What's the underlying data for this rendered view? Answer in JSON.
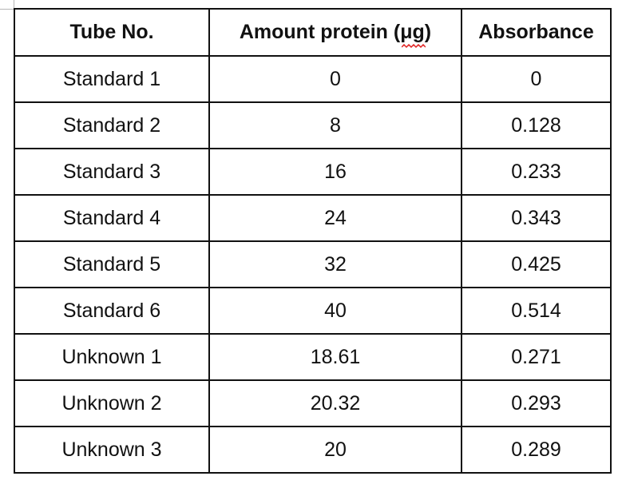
{
  "table": {
    "headers": [
      "Tube No.",
      "Amount protein (",
      "μg",
      ")",
      "Absorbance"
    ],
    "rows": [
      {
        "tube": "Standard 1",
        "amount": "0",
        "absorbance": "0"
      },
      {
        "tube": "Standard 2",
        "amount": "8",
        "absorbance": "0.128"
      },
      {
        "tube": "Standard 3",
        "amount": "16",
        "absorbance": "0.233"
      },
      {
        "tube": "Standard 4",
        "amount": "24",
        "absorbance": "0.343"
      },
      {
        "tube": "Standard 5",
        "amount": "32",
        "absorbance": "0.425"
      },
      {
        "tube": "Standard 6",
        "amount": "40",
        "absorbance": "0.514"
      },
      {
        "tube": "Unknown 1",
        "amount": "18.61",
        "absorbance": "0.271"
      },
      {
        "tube": "Unknown 2",
        "amount": "20.32",
        "absorbance": "0.293"
      },
      {
        "tube": "Unknown 3",
        "amount": "20",
        "absorbance": "0.289"
      }
    ]
  },
  "colors": {
    "text": "#111111",
    "border": "#111111",
    "spellcheck": "#e02020"
  }
}
